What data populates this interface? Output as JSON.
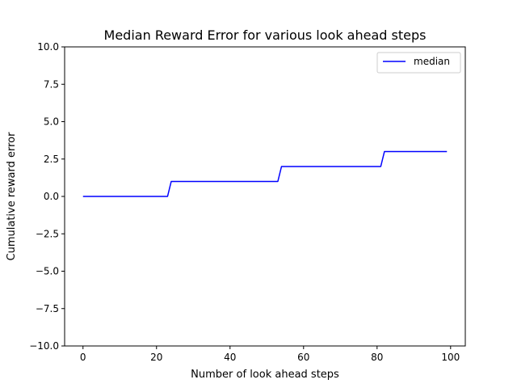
{
  "chart_data": {
    "type": "line",
    "title": "Median Reward Error for various look ahead steps",
    "xlabel": "Number of look ahead steps",
    "ylabel": "Cumulative reward error",
    "xlim": [
      -5,
      104
    ],
    "ylim": [
      -10,
      10
    ],
    "xticks": [
      0,
      20,
      40,
      60,
      80,
      100
    ],
    "yticks": [
      -10.0,
      -7.5,
      -5.0,
      -2.5,
      0.0,
      2.5,
      5.0,
      7.5,
      10.0
    ],
    "ytick_labels": [
      "−10.0",
      "−7.5",
      "−5.0",
      "−2.5",
      "0.0",
      "2.5",
      "5.0",
      "7.5",
      "10.0"
    ],
    "xtick_labels": [
      "0",
      "20",
      "40",
      "60",
      "80",
      "100"
    ],
    "grid": false,
    "legend": "top-right",
    "series": [
      {
        "name": "median",
        "color": "#0000ff",
        "x": [
          0,
          23,
          24,
          53,
          54,
          81,
          82,
          99
        ],
        "y": [
          0,
          0,
          1,
          1,
          2,
          2,
          3,
          3
        ]
      }
    ]
  }
}
